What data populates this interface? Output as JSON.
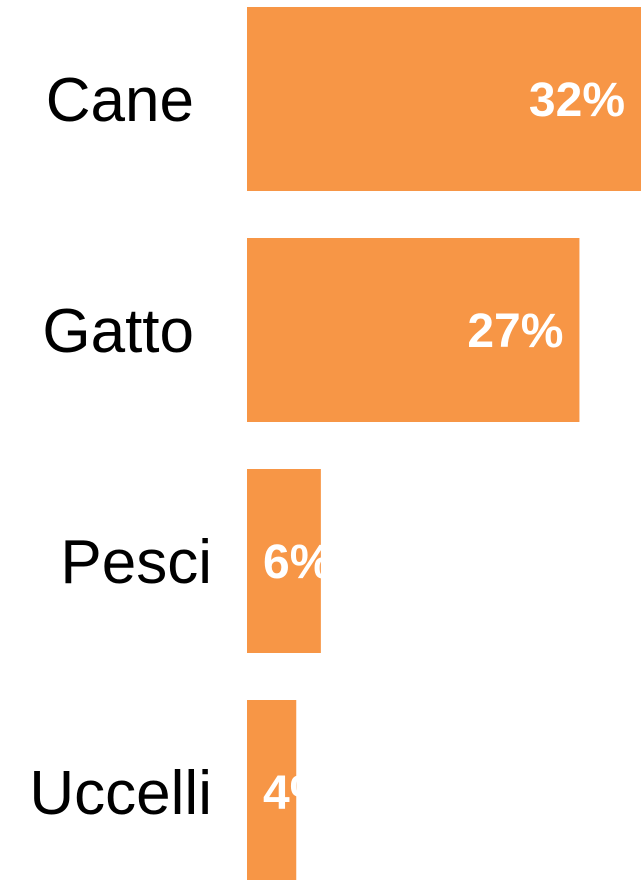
{
  "chart_data": {
    "type": "bar",
    "orientation": "horizontal",
    "categories": [
      "Cane",
      "Gatto",
      "Pesci",
      "Uccelli"
    ],
    "values": [
      32,
      27,
      6,
      4
    ],
    "value_labels": [
      "32%",
      "27%",
      "6%",
      "4%"
    ],
    "unit": "%",
    "xlim": [
      0,
      32
    ],
    "bar_color": "#f79646",
    "grid": false,
    "legend": "none"
  }
}
